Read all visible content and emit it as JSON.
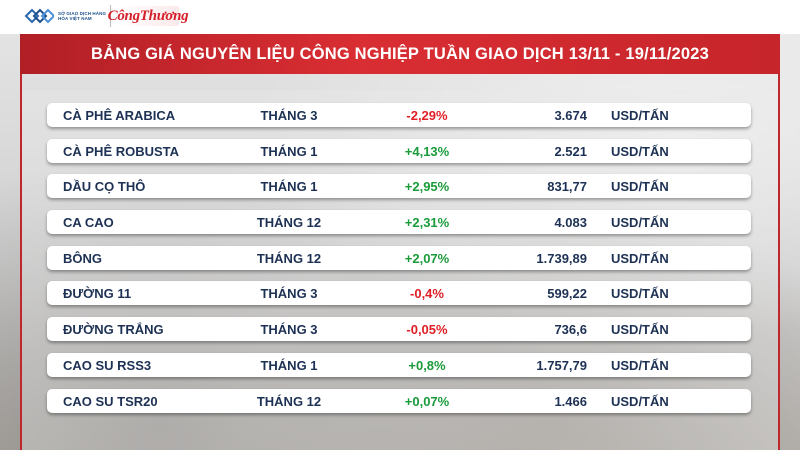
{
  "header": {
    "sgd_logo_text": "SỞ GIAO DỊCH HÀNG HÓA VIỆT NAM",
    "brand_name": "CôngThương",
    "title": "BẢNG GIÁ NGUYÊN LIỆU CÔNG NGHIỆP TUẦN GIAO DỊCH 13/11 - 19/11/2023"
  },
  "colors": {
    "banner_red": "#c6252b",
    "negative": "#e01e25",
    "positive": "#1a9b3a",
    "text_navy": "#1d3154"
  },
  "rows": [
    {
      "name": "CÀ PHÊ ARABICA",
      "month": "THÁNG 3",
      "change": "-2,29%",
      "trend": "neg",
      "price": "3.674",
      "unit": "USD/TẤN"
    },
    {
      "name": "CÀ PHÊ ROBUSTA",
      "month": "THÁNG 1",
      "change": "+4,13%",
      "trend": "pos",
      "price": "2.521",
      "unit": "USD/TẤN"
    },
    {
      "name": "DẦU CỌ THÔ",
      "month": "THÁNG 1",
      "change": "+2,95%",
      "trend": "pos",
      "price": "831,77",
      "unit": "USD/TẤN"
    },
    {
      "name": "CA CAO",
      "month": "THÁNG 12",
      "change": "+2,31%",
      "trend": "pos",
      "price": "4.083",
      "unit": "USD/TẤN"
    },
    {
      "name": "BÔNG",
      "month": "THÁNG 12",
      "change": "+2,07%",
      "trend": "pos",
      "price": "1.739,89",
      "unit": "USD/TẤN"
    },
    {
      "name": "ĐƯỜNG 11",
      "month": "THÁNG 3",
      "change": "-0,4%",
      "trend": "neg",
      "price": "599,22",
      "unit": "USD/TẤN"
    },
    {
      "name": "ĐƯỜNG TRẮNG",
      "month": "THÁNG 3",
      "change": "-0,05%",
      "trend": "neg",
      "price": "736,6",
      "unit": "USD/TẤN"
    },
    {
      "name": "CAO SU RSS3",
      "month": "THÁNG 1",
      "change": "+0,8%",
      "trend": "pos",
      "price": "1.757,79",
      "unit": "USD/TẤN"
    },
    {
      "name": "CAO SU TSR20",
      "month": "THÁNG 12",
      "change": "+0,07%",
      "trend": "pos",
      "price": "1.466",
      "unit": "USD/TẤN"
    }
  ]
}
